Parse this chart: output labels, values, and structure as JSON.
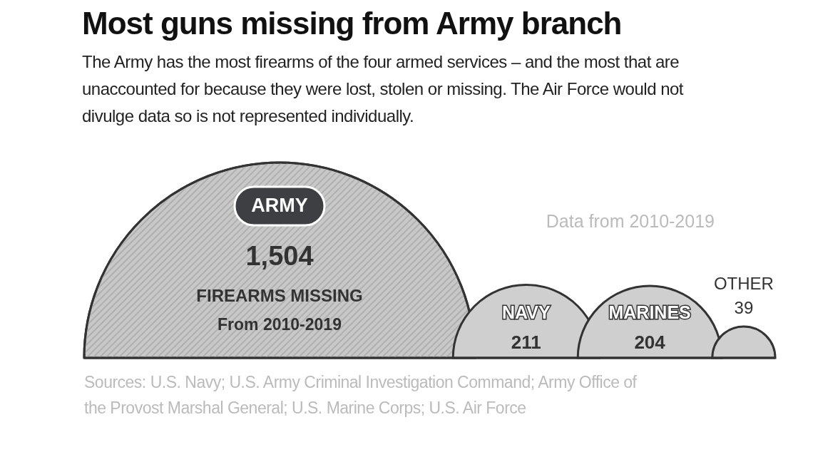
{
  "chart_data": {
    "type": "other",
    "title": "Most guns missing from Army branch",
    "subtitle": "The Army has the most firearms of the four armed services – and the most that are unaccounted for because they were lost, stolen or missing. The Air Force would not divulge data so is not represented individually.",
    "categories": [
      "ARMY",
      "NAVY",
      "MARINES",
      "OTHER"
    ],
    "values": [
      1504,
      211,
      204,
      39
    ],
    "colors": [
      "#c8c8c8",
      "#cfcfcf",
      "#cfcfcf",
      "#cfcfcf"
    ],
    "value_labels": [
      "1,504",
      "211",
      "204",
      "39"
    ],
    "annotations": [
      "FIREARMS MISSING",
      "From 2010-2019",
      "Data from 2010-2019",
      "Sources: U.S. Navy; U.S. Army Criminal Investigation Command; Army Office of the Provost Marshal General; U.S. Marine Corps; U.S. Air Force"
    ]
  }
}
